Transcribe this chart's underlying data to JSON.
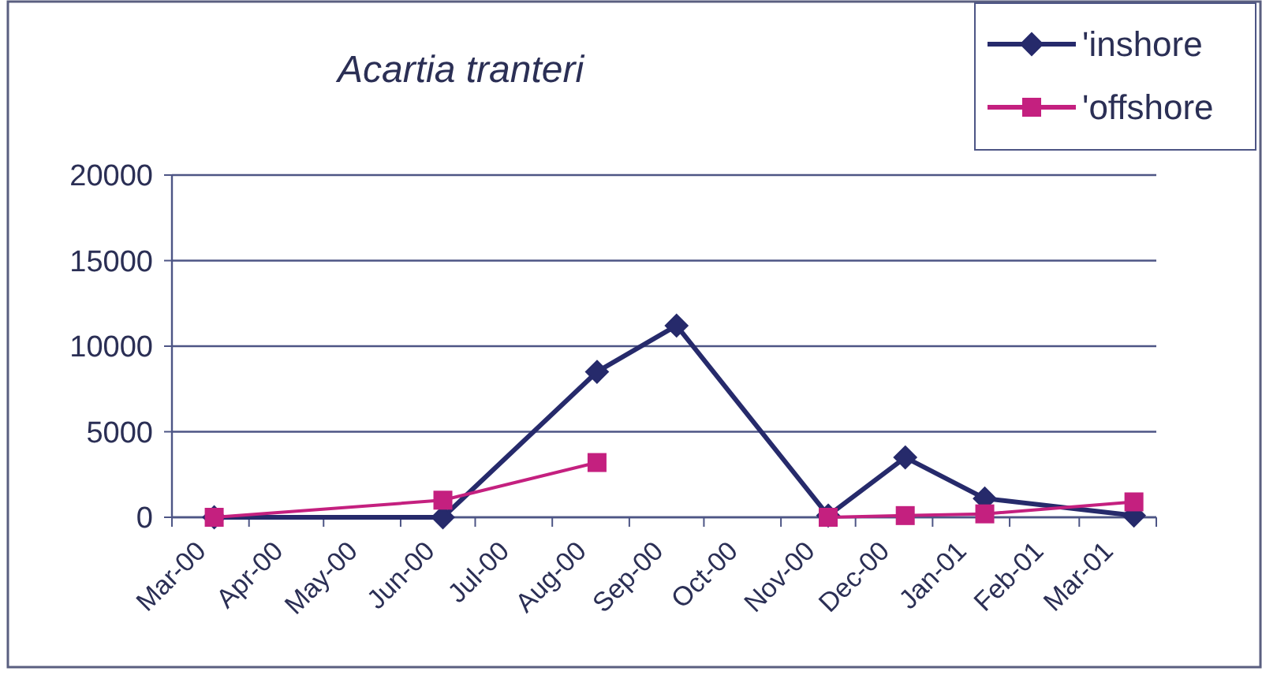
{
  "chart_data": {
    "type": "line",
    "title": "Acartia tranteri",
    "xlim": [
      "2000-03-01",
      "2001-04-01"
    ],
    "xticks": [
      {
        "value": "2000-03-01",
        "label": "Mar-00"
      },
      {
        "value": "2000-04-01",
        "label": "Apr-00"
      },
      {
        "value": "2000-05-01",
        "label": "May-00"
      },
      {
        "value": "2000-06-01",
        "label": "Jun-00"
      },
      {
        "value": "2000-07-01",
        "label": "Jul-00"
      },
      {
        "value": "2000-08-01",
        "label": "Aug-00"
      },
      {
        "value": "2000-09-01",
        "label": "Sep-00"
      },
      {
        "value": "2000-10-01",
        "label": "Oct-00"
      },
      {
        "value": "2000-11-01",
        "label": "Nov-00"
      },
      {
        "value": "2000-12-01",
        "label": "Dec-00"
      },
      {
        "value": "2001-01-01",
        "label": "Jan-01"
      },
      {
        "value": "2001-02-01",
        "label": "Feb-01"
      },
      {
        "value": "2001-03-01",
        "label": "Mar-01"
      },
      {
        "value": "2001-04-01",
        "label": null
      }
    ],
    "ylim": [
      0,
      20000
    ],
    "yticks": [
      0,
      5000,
      10000,
      15000,
      20000
    ],
    "x": [
      "2000-03-18",
      "2000-06-18",
      "2000-08-19",
      "2000-09-20",
      "2000-11-20",
      "2000-12-21",
      "2001-01-22",
      "2001-03-23"
    ],
    "series": [
      {
        "name": "'inshore",
        "color": "#262a6b",
        "marker": "diamond",
        "values": [
          0,
          0,
          8500,
          11200,
          100,
          3500,
          1100,
          100
        ]
      },
      {
        "name": "'offshore",
        "color": "#c4207f",
        "marker": "square",
        "values": [
          0,
          1000,
          3200,
          null,
          0,
          100,
          200,
          900
        ]
      }
    ],
    "grid": "y",
    "legend": "top right",
    "line_style": "solid"
  }
}
